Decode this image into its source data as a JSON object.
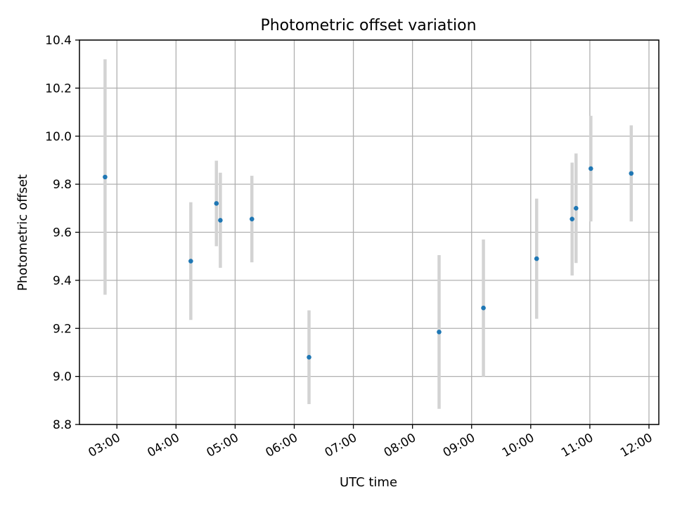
{
  "chart_data": {
    "type": "scatter",
    "title": "Photometric offset variation",
    "xlabel": "UTC time",
    "ylabel": "Photometric offset",
    "xlim": [
      "02:22",
      "12:10"
    ],
    "ylim": [
      8.8,
      10.4
    ],
    "x_ticks": [
      "03:00",
      "04:00",
      "05:00",
      "06:00",
      "07:00",
      "08:00",
      "09:00",
      "10:00",
      "11:00",
      "12:00"
    ],
    "y_ticks": [
      "8.8",
      "9.0",
      "9.2",
      "9.4",
      "9.6",
      "9.8",
      "10.0",
      "10.2",
      "10.4"
    ],
    "grid": true,
    "points": [
      {
        "x": "02:48",
        "y": 9.83,
        "err": 0.49
      },
      {
        "x": "04:15",
        "y": 9.48,
        "err": 0.245
      },
      {
        "x": "04:41",
        "y": 9.72,
        "err": 0.178
      },
      {
        "x": "04:45",
        "y": 9.65,
        "err": 0.198
      },
      {
        "x": "05:17",
        "y": 9.655,
        "err": 0.18
      },
      {
        "x": "06:15",
        "y": 9.08,
        "err": 0.195
      },
      {
        "x": "08:27",
        "y": 9.185,
        "err": 0.32
      },
      {
        "x": "09:12",
        "y": 9.285,
        "err": 0.285
      },
      {
        "x": "10:06",
        "y": 9.49,
        "err": 0.25
      },
      {
        "x": "10:42",
        "y": 9.655,
        "err": 0.235
      },
      {
        "x": "10:46",
        "y": 9.7,
        "err": 0.228
      },
      {
        "x": "11:01",
        "y": 9.865,
        "err": 0.22
      },
      {
        "x": "11:42",
        "y": 9.845,
        "err": 0.2
      }
    ],
    "colors": {
      "marker": "#1f77b4",
      "errorbar": "#d3d3d3",
      "grid": "#b0b0b0",
      "axes": "#000000"
    }
  }
}
